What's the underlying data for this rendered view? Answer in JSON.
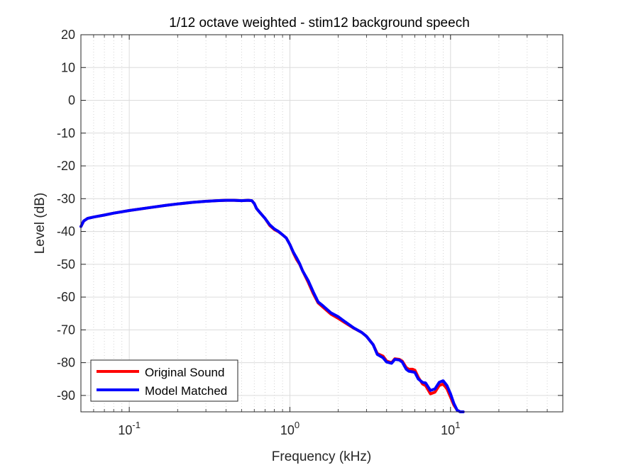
{
  "chart_data": {
    "type": "line",
    "title": "1/12 octave weighted - stim12 background speech",
    "xlabel": "Frequency (kHz)",
    "ylabel": "Level (dB)",
    "xscale": "log",
    "xlim": [
      0.05,
      50
    ],
    "ylim": [
      -95,
      20
    ],
    "xticks": [
      {
        "value": 0.1,
        "base": "10",
        "exp": "-1"
      },
      {
        "value": 1,
        "base": "10",
        "exp": "0"
      },
      {
        "value": 10,
        "base": "10",
        "exp": "1"
      }
    ],
    "yticks": [
      20,
      10,
      0,
      -10,
      -20,
      -30,
      -40,
      -50,
      -60,
      -70,
      -80,
      -90
    ],
    "grid": true,
    "minor_grid": true,
    "legend_position": "bottom-left",
    "series": [
      {
        "name": "Original Sound",
        "color": "#ff0000",
        "x": [
          0.05,
          0.052,
          0.055,
          0.06,
          0.07,
          0.08,
          0.1,
          0.13,
          0.17,
          0.2,
          0.25,
          0.3,
          0.35,
          0.4,
          0.45,
          0.5,
          0.55,
          0.58,
          0.6,
          0.62,
          0.65,
          0.7,
          0.75,
          0.8,
          0.85,
          0.9,
          0.95,
          1.0,
          1.05,
          1.1,
          1.15,
          1.2,
          1.3,
          1.4,
          1.5,
          1.6,
          1.8,
          2.0,
          2.2,
          2.5,
          2.8,
          3.0,
          3.3,
          3.5,
          3.8,
          4.0,
          4.3,
          4.5,
          4.8,
          5.0,
          5.3,
          5.5,
          5.8,
          6.0,
          6.3,
          6.7,
          7.0,
          7.5,
          8.0,
          8.5,
          9.0,
          9.5,
          10.0,
          10.5,
          11.0,
          11.5,
          12.0
        ],
        "values": [
          -38.5,
          -36.8,
          -36.0,
          -35.6,
          -35.0,
          -34.4,
          -33.6,
          -32.8,
          -32.0,
          -31.6,
          -31.1,
          -30.8,
          -30.6,
          -30.5,
          -30.5,
          -30.6,
          -30.5,
          -30.6,
          -31.5,
          -33.0,
          -34.2,
          -36.0,
          -38.2,
          -39.4,
          -40.1,
          -41.0,
          -42.0,
          -44.0,
          -46.5,
          -48.5,
          -50.0,
          -52.0,
          -55.5,
          -59.0,
          -61.8,
          -63.0,
          -65.2,
          -66.5,
          -67.8,
          -69.5,
          -70.8,
          -72.0,
          -74.5,
          -77.2,
          -78.0,
          -79.5,
          -80.0,
          -78.8,
          -79.0,
          -79.5,
          -81.5,
          -82.0,
          -82.0,
          -82.3,
          -84.5,
          -86.5,
          -87.0,
          -89.5,
          -89.0,
          -87.0,
          -86.5,
          -88.0,
          -90.5,
          -93.0,
          -94.5,
          -95.0,
          -95.0
        ]
      },
      {
        "name": "Model Matched",
        "color": "#0000ff",
        "x": [
          0.05,
          0.052,
          0.055,
          0.06,
          0.07,
          0.08,
          0.1,
          0.13,
          0.17,
          0.2,
          0.25,
          0.3,
          0.35,
          0.4,
          0.45,
          0.5,
          0.55,
          0.58,
          0.6,
          0.62,
          0.65,
          0.7,
          0.75,
          0.8,
          0.85,
          0.9,
          0.95,
          1.0,
          1.05,
          1.1,
          1.15,
          1.2,
          1.3,
          1.4,
          1.5,
          1.6,
          1.8,
          2.0,
          2.2,
          2.5,
          2.8,
          3.0,
          3.3,
          3.5,
          3.8,
          4.0,
          4.3,
          4.5,
          4.8,
          5.0,
          5.3,
          5.5,
          5.8,
          6.0,
          6.3,
          6.7,
          7.0,
          7.5,
          8.0,
          8.5,
          9.0,
          9.5,
          10.0,
          10.5,
          11.0,
          11.5,
          12.0
        ],
        "values": [
          -38.5,
          -36.8,
          -36.0,
          -35.6,
          -35.0,
          -34.4,
          -33.6,
          -32.8,
          -32.0,
          -31.6,
          -31.1,
          -30.8,
          -30.6,
          -30.5,
          -30.5,
          -30.6,
          -30.5,
          -30.6,
          -31.5,
          -33.0,
          -34.2,
          -36.0,
          -38.0,
          -39.2,
          -40.0,
          -41.0,
          -42.0,
          -44.0,
          -46.3,
          -48.0,
          -49.8,
          -52.0,
          -55.0,
          -58.5,
          -61.5,
          -62.6,
          -64.8,
          -66.0,
          -67.5,
          -69.4,
          -70.8,
          -72.0,
          -74.5,
          -77.5,
          -78.5,
          -79.8,
          -80.2,
          -79.0,
          -79.2,
          -79.8,
          -82.0,
          -82.6,
          -82.8,
          -83.0,
          -85.0,
          -86.0,
          -86.2,
          -88.5,
          -88.0,
          -86.0,
          -85.5,
          -87.0,
          -89.5,
          -92.5,
          -94.5,
          -95.0,
          -95.0
        ]
      }
    ]
  }
}
